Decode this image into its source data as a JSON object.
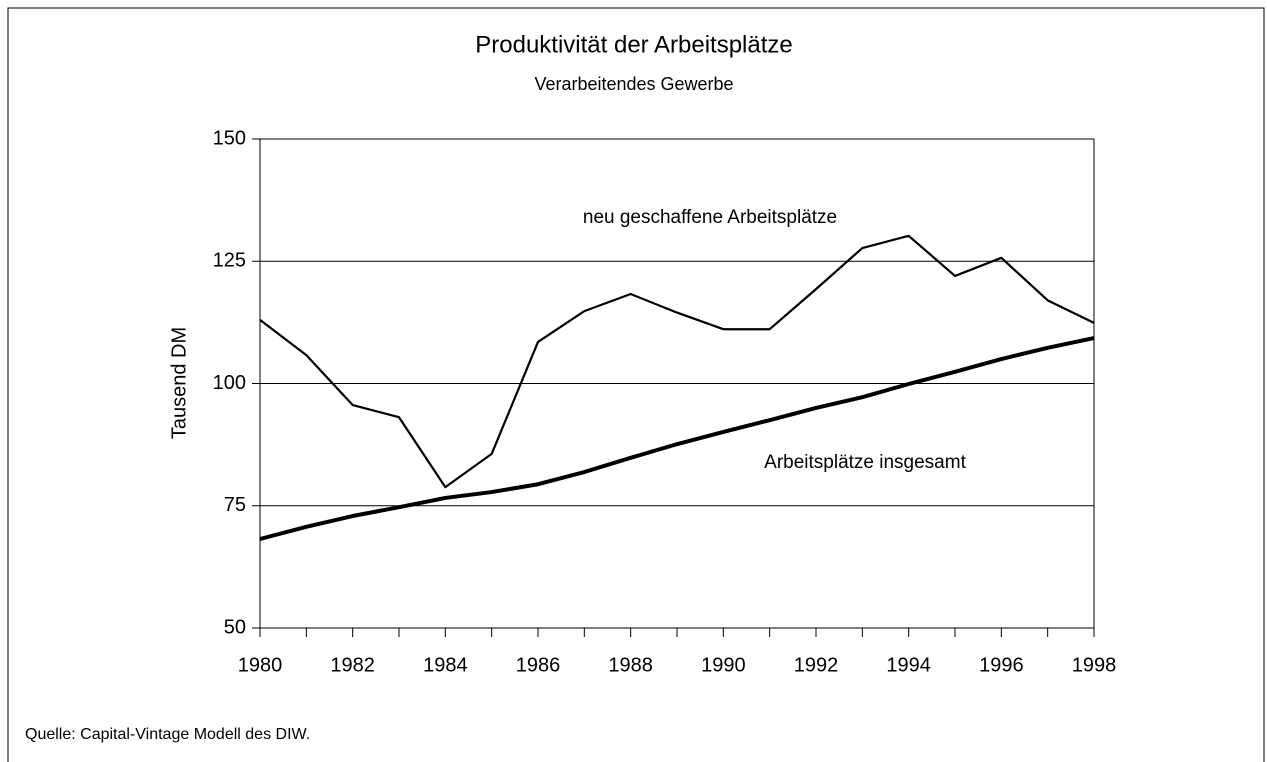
{
  "chart_data": {
    "type": "line",
    "title": "Produktivität der Arbeitsplätze",
    "subtitle": "Verarbeitendes Gewerbe",
    "y_label": "Tausend DM",
    "source": "Quelle: Capital-Vintage Modell des DIW.",
    "x": [
      1980,
      1981,
      1982,
      1983,
      1984,
      1985,
      1986,
      1987,
      1988,
      1989,
      1990,
      1991,
      1992,
      1993,
      1994,
      1995,
      1996,
      1997,
      1998
    ],
    "xlim": [
      1980,
      1998
    ],
    "xticks": [
      1980,
      1982,
      1984,
      1986,
      1988,
      1990,
      1992,
      1994,
      1996,
      1998
    ],
    "ylim": [
      50,
      150
    ],
    "yticks": [
      50,
      75,
      100,
      125,
      150
    ],
    "grid": true,
    "series": [
      {
        "name": "neu geschaffene Arbeitsplätze",
        "color": "#000000",
        "values": [
          113,
          105.8,
          95.6,
          93.1,
          78.8,
          85.6,
          108.5,
          114.8,
          118.3,
          114.5,
          111.1,
          111.1,
          119.3,
          127.7,
          130.2,
          122,
          125.7,
          117,
          112.4
        ]
      },
      {
        "name": "Arbeitsplätze insgesamt",
        "color": "#000000",
        "values": [
          68.2,
          70.7,
          72.9,
          74.7,
          76.6,
          77.8,
          79.4,
          81.9,
          84.8,
          87.6,
          90.1,
          92.5,
          95,
          97.2,
          99.9,
          102.4,
          105,
          107.3,
          109.3
        ]
      }
    ]
  }
}
